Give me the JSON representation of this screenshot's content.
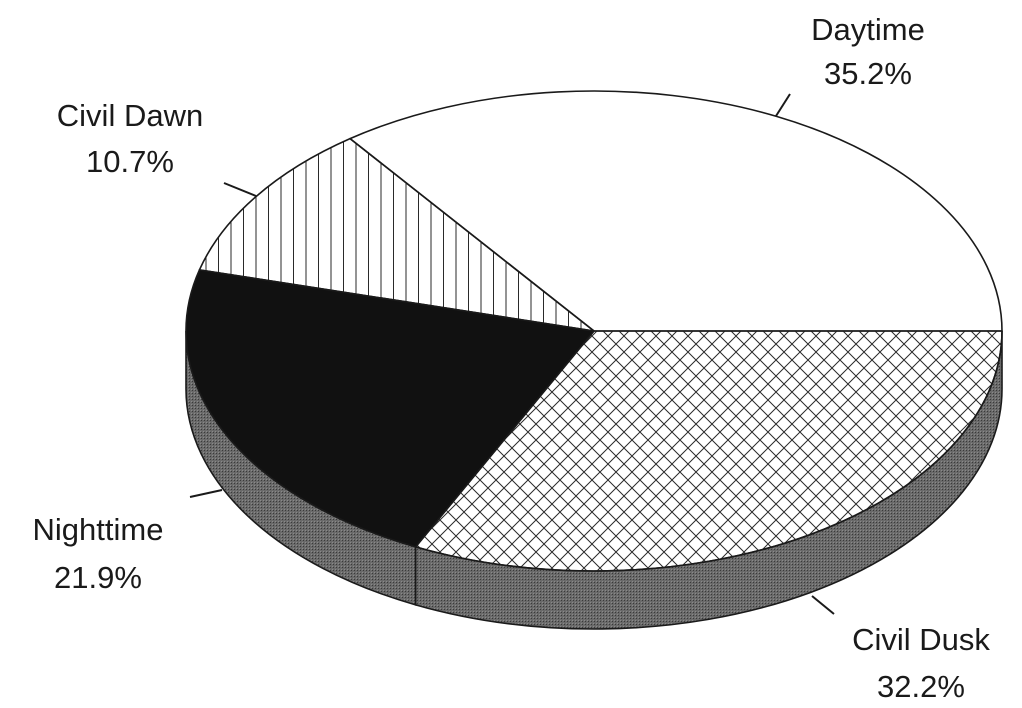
{
  "chart_data": {
    "type": "pie",
    "style": "3d",
    "title": "",
    "slices": [
      {
        "label": "Daytime",
        "value_label": "35.2%",
        "value": 35.2,
        "fill": "white"
      },
      {
        "label": "Civil Dusk",
        "value_label": "32.2%",
        "value": 32.2,
        "fill": "crosshatch"
      },
      {
        "label": "Nighttime",
        "value_label": "21.9%",
        "value": 21.9,
        "fill": "black"
      },
      {
        "label": "Civil Dawn",
        "value_label": "10.7%",
        "value": 10.7,
        "fill": "vertical-lines"
      }
    ],
    "colors": {
      "outline": "#1a1a1a",
      "dark_fill": "#111111",
      "side_fill": "#5a5a5a"
    }
  }
}
